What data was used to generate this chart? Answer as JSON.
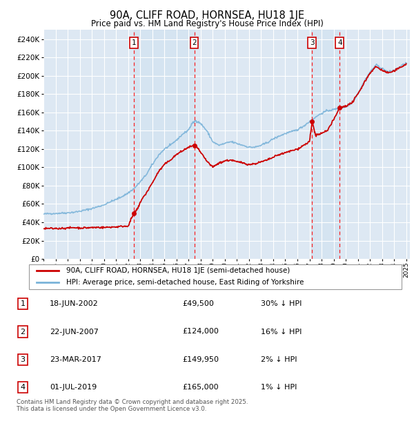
{
  "title": "90A, CLIFF ROAD, HORNSEA, HU18 1JE",
  "subtitle": "Price paid vs. HM Land Registry's House Price Index (HPI)",
  "ylim": [
    0,
    250000
  ],
  "yticks": [
    0,
    20000,
    40000,
    60000,
    80000,
    100000,
    120000,
    140000,
    160000,
    180000,
    200000,
    220000,
    240000
  ],
  "hpi_color": "#7ab3d9",
  "price_color": "#cc0000",
  "grid_color": "#c8d8e8",
  "background_color": "#dde8f3",
  "shade_color": "#c8ddf0",
  "transaction_years": [
    2002.46,
    2007.47,
    2017.22,
    2019.5
  ],
  "transaction_prices": [
    49500,
    124000,
    149950,
    165000
  ],
  "transaction_labels": [
    "1",
    "2",
    "3",
    "4"
  ],
  "transaction_table": [
    {
      "num": "1",
      "date": "18-JUN-2002",
      "price": "£49,500",
      "note": "30% ↓ HPI"
    },
    {
      "num": "2",
      "date": "22-JUN-2007",
      "price": "£124,000",
      "note": "16% ↓ HPI"
    },
    {
      "num": "3",
      "date": "23-MAR-2017",
      "price": "£149,950",
      "note": "2% ↓ HPI"
    },
    {
      "num": "4",
      "date": "01-JUL-2019",
      "price": "£165,000",
      "note": "1% ↓ HPI"
    }
  ],
  "legend_entries": [
    "90A, CLIFF ROAD, HORNSEA, HU18 1JE (semi-detached house)",
    "HPI: Average price, semi-detached house, East Riding of Yorkshire"
  ],
  "footer": "Contains HM Land Registry data © Crown copyright and database right 2025.\nThis data is licensed under the Open Government Licence v3.0."
}
